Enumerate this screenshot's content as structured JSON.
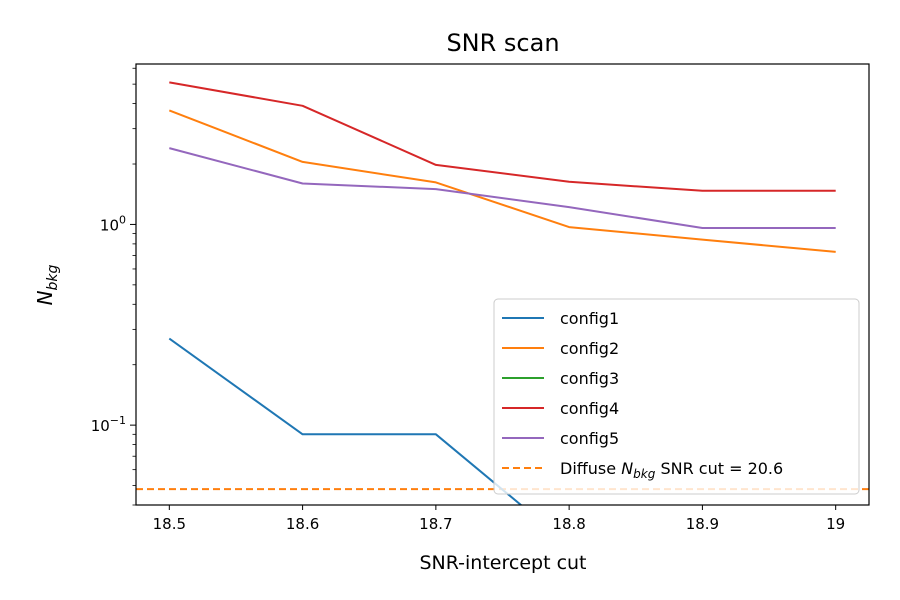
{
  "chart_data": {
    "type": "line",
    "title": "SNR scan",
    "xlabel": "SNR-intercept cut",
    "ylabel_base": "N",
    "ylabel_sub": "bkg",
    "yscale": "log",
    "xlim": [
      18.475,
      19.025
    ],
    "ylim": [
      0.04,
      6.3
    ],
    "grid": false,
    "legend_position": "lower-right",
    "x_ticks": [
      {
        "value": 18.5,
        "label": "18.5"
      },
      {
        "value": 18.6,
        "label": "18.6"
      },
      {
        "value": 18.7,
        "label": "18.7"
      },
      {
        "value": 18.8,
        "label": "18.8"
      },
      {
        "value": 18.9,
        "label": "18.9"
      },
      {
        "value": 19.0,
        "label": "19"
      }
    ],
    "y_ticks": [
      {
        "value": 1,
        "base": "10",
        "exp": "0"
      },
      {
        "value": 0.1,
        "base": "10",
        "exp": "−1"
      }
    ],
    "x": [
      18.5,
      18.6,
      18.7,
      18.8,
      18.9,
      19.0
    ],
    "series": [
      {
        "name": "config1",
        "color": "#1f77b4",
        "values": [
          0.27,
          0.09,
          0.09,
          0.0,
          0.0,
          0.0
        ]
      },
      {
        "name": "config2",
        "color": "#ff7f0e",
        "values": [
          3.7,
          2.05,
          1.62,
          0.97,
          0.84,
          0.73
        ]
      },
      {
        "name": "config3",
        "color": "#2ca02c",
        "values": [
          0,
          0,
          0,
          0,
          0,
          0
        ]
      },
      {
        "name": "config4",
        "color": "#d62728",
        "values": [
          5.1,
          3.9,
          1.98,
          1.63,
          1.47,
          1.47
        ]
      },
      {
        "name": "config5",
        "color": "#9467bd",
        "values": [
          2.4,
          1.6,
          1.5,
          1.22,
          0.96,
          0.96
        ]
      }
    ],
    "reference_line": {
      "value": 0.048,
      "color": "#ff7f0e",
      "style": "dashed",
      "label_prefix": "Diffuse ",
      "label_base": "N",
      "label_sub": "bkg",
      "label_suffix": " SNR cut = 20.6"
    }
  }
}
